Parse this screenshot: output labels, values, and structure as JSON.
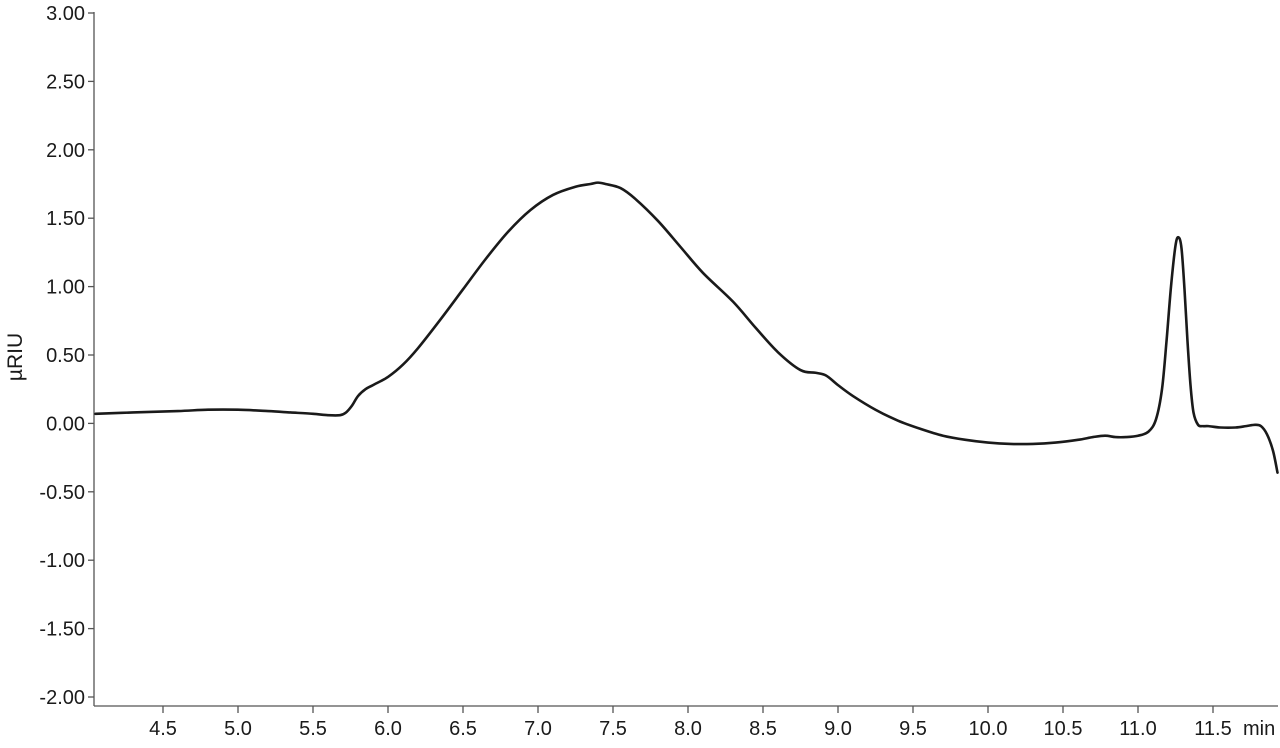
{
  "chart_data": {
    "type": "line",
    "title": "",
    "ylabel": "µRIU",
    "xunit": "min",
    "xlim": [
      4.05,
      11.95
    ],
    "ylim": [
      -2.0,
      3.0
    ],
    "x_ticks": [
      4.5,
      5.0,
      5.5,
      6.0,
      6.5,
      7.0,
      7.5,
      8.0,
      8.5,
      9.0,
      9.5,
      10.0,
      10.5,
      11.0,
      11.5
    ],
    "x_tick_labels": [
      "4.5",
      "5.0",
      "5.5",
      "6.0",
      "6.5",
      "7.0",
      "7.5",
      "8.0",
      "8.5",
      "9.0",
      "9.5",
      "10.0",
      "10.5",
      "11.0",
      "11.5"
    ],
    "y_ticks": [
      3.0,
      2.5,
      2.0,
      1.5,
      1.0,
      0.5,
      0.0,
      -0.5,
      -1.0,
      -1.5,
      -2.0
    ],
    "y_tick_labels": [
      "3.00",
      "2.50",
      "2.00",
      "1.50",
      "1.00",
      "0.50",
      "0.00",
      "-0.50",
      "-1.00",
      "-1.50",
      "-2.00"
    ],
    "grid": false,
    "legend": "none",
    "line_color": "#1a1a1a",
    "axis_color": "#555555",
    "series": [
      {
        "x": [
          4.05,
          4.3,
          4.6,
          4.8,
          5.0,
          5.2,
          5.35,
          5.5,
          5.6,
          5.68,
          5.72,
          5.76,
          5.8,
          5.85,
          5.9,
          6.0,
          6.1,
          6.2,
          6.35,
          6.5,
          6.65,
          6.8,
          6.95,
          7.1,
          7.25,
          7.35,
          7.4,
          7.45,
          7.55,
          7.65,
          7.8,
          7.95,
          8.1,
          8.3,
          8.45,
          8.6,
          8.75,
          8.85,
          8.92,
          9.0,
          9.1,
          9.25,
          9.4,
          9.55,
          9.7,
          9.85,
          10.0,
          10.15,
          10.3,
          10.45,
          10.6,
          10.7,
          10.78,
          10.85,
          10.92,
          11.0,
          11.07,
          11.12,
          11.16,
          11.19,
          11.22,
          11.25,
          11.27,
          11.29,
          11.31,
          11.33,
          11.35,
          11.37,
          11.4,
          11.43,
          11.47,
          11.55,
          11.65,
          11.72,
          11.78,
          11.82,
          11.86,
          11.9,
          11.93
        ],
        "y": [
          0.07,
          0.08,
          0.09,
          0.1,
          0.1,
          0.09,
          0.08,
          0.07,
          0.06,
          0.06,
          0.08,
          0.13,
          0.2,
          0.25,
          0.28,
          0.34,
          0.43,
          0.55,
          0.76,
          0.98,
          1.2,
          1.4,
          1.56,
          1.67,
          1.73,
          1.75,
          1.76,
          1.75,
          1.72,
          1.64,
          1.48,
          1.29,
          1.1,
          0.89,
          0.7,
          0.52,
          0.39,
          0.37,
          0.35,
          0.28,
          0.2,
          0.1,
          0.02,
          -0.04,
          -0.09,
          -0.12,
          -0.14,
          -0.15,
          -0.15,
          -0.14,
          -0.12,
          -0.1,
          -0.09,
          -0.1,
          -0.1,
          -0.09,
          -0.06,
          0.03,
          0.25,
          0.6,
          1.0,
          1.3,
          1.36,
          1.28,
          0.98,
          0.6,
          0.28,
          0.08,
          -0.01,
          -0.02,
          -0.02,
          -0.03,
          -0.03,
          -0.02,
          -0.01,
          -0.02,
          -0.08,
          -0.2,
          -0.36
        ]
      }
    ]
  }
}
